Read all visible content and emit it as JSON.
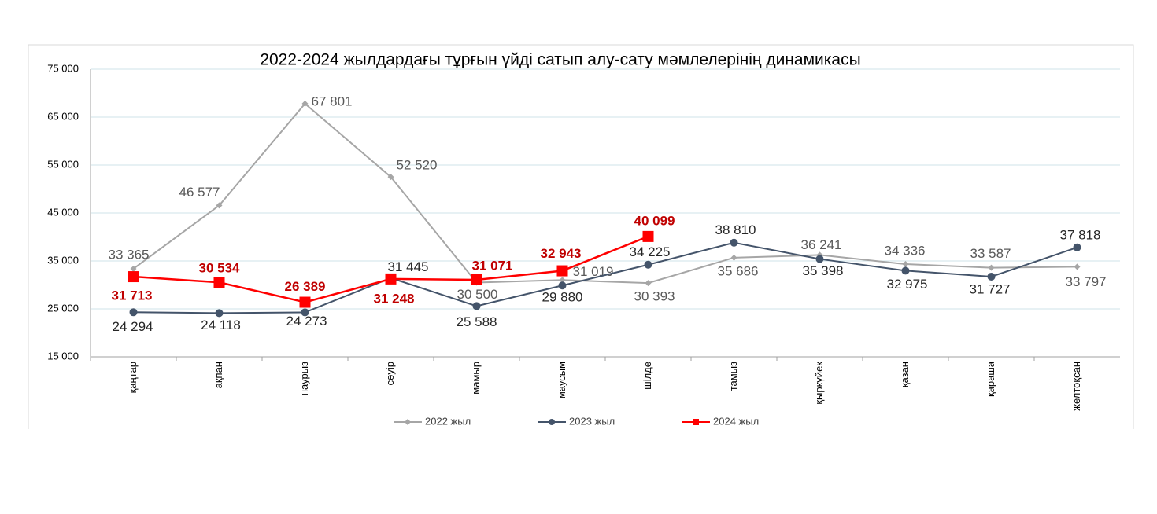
{
  "chart_data": {
    "type": "line",
    "title": "2022-2024  жылдардағы тұрғын үйді сатып алу-сату  мәмлелерінің динамикасы",
    "categories": [
      "қаңтар",
      "ақпан",
      "наурыз",
      "сәуір",
      "мамыр",
      "маусым",
      "шілде",
      "тамыз",
      "қыркүйек",
      "қазан",
      "қараша",
      "желтоқсан"
    ],
    "series": [
      {
        "name": "2022 жыл",
        "color": "#a6a6a6",
        "marker": "diamond",
        "values": [
          33365,
          46577,
          67801,
          52520,
          30500,
          31019,
          30393,
          35686,
          36241,
          34336,
          33587,
          33797
        ],
        "value_labels": [
          "33 365",
          "46 577",
          "67 801",
          "52 520",
          "30 500",
          "31 019",
          "30 393",
          "35 686",
          "36 241",
          "34 336",
          "33 587",
          "33 797"
        ]
      },
      {
        "name": "2023 жыл",
        "color": "#44546a",
        "marker": "circle",
        "values": [
          24294,
          24118,
          24273,
          31445,
          25588,
          29880,
          34225,
          38810,
          35398,
          32975,
          31727,
          37818
        ],
        "value_labels": [
          "24 294",
          "24 118",
          "24 273",
          "31 445",
          "25 588",
          "29 880",
          "34 225",
          "38 810",
          "35 398",
          "32 975",
          "31 727",
          "37 818"
        ]
      },
      {
        "name": "2024 жыл",
        "color": "#ff0000",
        "marker": "square",
        "values": [
          31713,
          30534,
          26389,
          31248,
          31071,
          32943,
          40099,
          null,
          null,
          null,
          null,
          null
        ],
        "value_labels": [
          "31 713",
          "30 534",
          "26 389",
          "31 248",
          "31 071",
          "32 943",
          "40 099",
          null,
          null,
          null,
          null,
          null
        ]
      }
    ],
    "ylim": [
      15000,
      75000
    ],
    "yticks": [
      {
        "value": 15000,
        "label": "15 000"
      },
      {
        "value": 25000,
        "label": "25 000"
      },
      {
        "value": 35000,
        "label": "35 000"
      },
      {
        "value": 45000,
        "label": "45 000"
      },
      {
        "value": 55000,
        "label": "55 000"
      },
      {
        "value": 65000,
        "label": "65 000"
      },
      {
        "value": 75000,
        "label": "75 000"
      }
    ],
    "grid": true,
    "legend": "bottom"
  }
}
